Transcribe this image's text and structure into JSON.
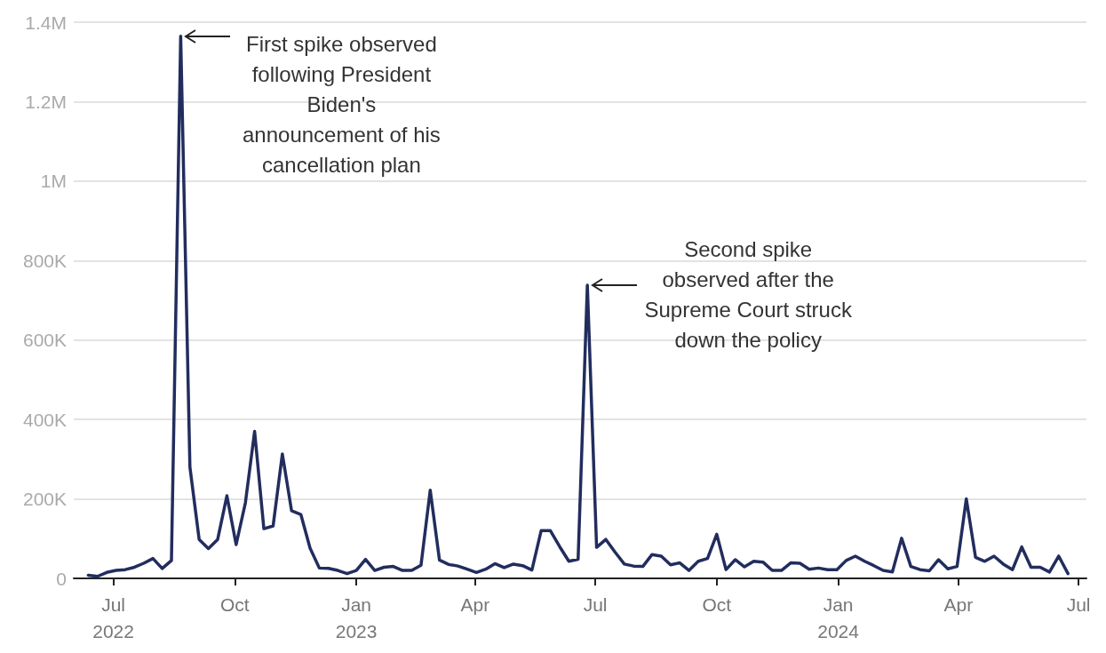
{
  "chart_data": {
    "type": "line",
    "x": [
      "2022-06-12",
      "2022-06-19",
      "2022-06-26",
      "2022-07-03",
      "2022-07-10",
      "2022-07-17",
      "2022-07-24",
      "2022-07-31",
      "2022-08-07",
      "2022-08-14",
      "2022-08-21",
      "2022-08-28",
      "2022-09-04",
      "2022-09-11",
      "2022-09-18",
      "2022-09-25",
      "2022-10-02",
      "2022-10-09",
      "2022-10-16",
      "2022-10-23",
      "2022-10-30",
      "2022-11-06",
      "2022-11-13",
      "2022-11-20",
      "2022-11-27",
      "2022-12-04",
      "2022-12-11",
      "2022-12-18",
      "2022-12-25",
      "2023-01-01",
      "2023-01-08",
      "2023-01-15",
      "2023-01-22",
      "2023-01-29",
      "2023-02-05",
      "2023-02-12",
      "2023-02-19",
      "2023-02-26",
      "2023-03-05",
      "2023-03-12",
      "2023-03-19",
      "2023-03-26",
      "2023-04-02",
      "2023-04-09",
      "2023-04-16",
      "2023-04-23",
      "2023-04-30",
      "2023-05-07",
      "2023-05-14",
      "2023-05-21",
      "2023-05-28",
      "2023-06-04",
      "2023-06-11",
      "2023-06-18",
      "2023-06-25",
      "2023-07-02",
      "2023-07-09",
      "2023-07-16",
      "2023-07-23",
      "2023-07-30",
      "2023-08-06",
      "2023-08-13",
      "2023-08-20",
      "2023-08-27",
      "2023-09-03",
      "2023-09-10",
      "2023-09-17",
      "2023-09-24",
      "2023-10-01",
      "2023-10-08",
      "2023-10-15",
      "2023-10-22",
      "2023-10-29",
      "2023-11-05",
      "2023-11-12",
      "2023-11-19",
      "2023-11-26",
      "2023-12-03",
      "2023-12-10",
      "2023-12-17",
      "2023-12-24",
      "2023-12-31",
      "2024-01-07",
      "2024-01-14",
      "2024-01-21",
      "2024-01-28",
      "2024-02-04",
      "2024-02-11",
      "2024-02-18",
      "2024-02-25",
      "2024-03-03",
      "2024-03-10",
      "2024-03-17",
      "2024-03-24",
      "2024-03-31",
      "2024-04-07",
      "2024-04-14",
      "2024-04-21",
      "2024-04-28",
      "2024-05-05",
      "2024-05-12",
      "2024-05-19",
      "2024-05-26",
      "2024-06-02",
      "2024-06-09",
      "2024-06-16",
      "2024-06-23"
    ],
    "series": [
      {
        "color": "#222d5e",
        "values": [
          8000,
          5000,
          15000,
          20000,
          22000,
          28000,
          38000,
          50000,
          25000,
          45000,
          1365000,
          280000,
          98000,
          75000,
          98000,
          208000,
          85000,
          190000,
          370000,
          125000,
          132000,
          313000,
          170000,
          161000,
          76000,
          26000,
          25000,
          20000,
          12000,
          20000,
          48000,
          20000,
          28000,
          30000,
          20000,
          20000,
          33000,
          222000,
          46000,
          35000,
          31000,
          23000,
          15000,
          23000,
          37000,
          27000,
          36000,
          32000,
          21000,
          120000,
          120000,
          80000,
          43000,
          48000,
          738000,
          78000,
          98000,
          66000,
          36000,
          31000,
          30000,
          60000,
          56000,
          34000,
          39000,
          20000,
          43000,
          50000,
          111000,
          22000,
          47000,
          29000,
          43000,
          41000,
          20000,
          20000,
          39000,
          38000,
          23000,
          26000,
          22000,
          22000,
          45000,
          56000,
          43000,
          32000,
          20000,
          16000,
          101000,
          30000,
          22000,
          19000,
          47000,
          24000,
          30000,
          200000,
          53000,
          43000,
          56000,
          36000,
          22000,
          79000,
          28000,
          28000,
          16000,
          56000,
          12000
        ]
      }
    ],
    "xlim": [
      "2022-06-01",
      "2024-07-07"
    ],
    "xticks": [
      {
        "value": "2022-07-01",
        "label": "Jul\n2022"
      },
      {
        "value": "2022-10-01",
        "label": "Oct"
      },
      {
        "value": "2023-01-01",
        "label": "Jan\n2023"
      },
      {
        "value": "2023-04-01",
        "label": "Apr"
      },
      {
        "value": "2023-07-01",
        "label": "Jul"
      },
      {
        "value": "2023-10-01",
        "label": "Oct"
      },
      {
        "value": "2024-01-01",
        "label": "Jan\n2024"
      },
      {
        "value": "2024-04-01",
        "label": "Apr"
      },
      {
        "value": "2024-07-01",
        "label": "Jul"
      }
    ],
    "ylim": [
      0,
      1400000
    ],
    "yticks": [
      0,
      {
        "value": 200000,
        "label": "200K"
      },
      {
        "value": 400000,
        "label": "400K"
      },
      {
        "value": 600000,
        "label": "600K"
      },
      {
        "value": 800000,
        "label": "800K"
      },
      {
        "value": 1000000,
        "label": "1M"
      },
      {
        "value": 1200000,
        "label": "1.2M"
      },
      {
        "value": 1400000,
        "label": "1.4M"
      }
    ],
    "grid": "y",
    "marker": "none",
    "line_style": "solid",
    "annotations": [
      {
        "text": "First spike observed\nfollowing President\nBiden's\nannouncement of his\ncancellation plan",
        "x": "2022-08-21",
        "y": 1365000
      },
      {
        "text": "Second spike\nobserved after the\nSupreme Court struck\ndown the policy",
        "x": "2023-06-25",
        "y": 738000
      }
    ]
  }
}
